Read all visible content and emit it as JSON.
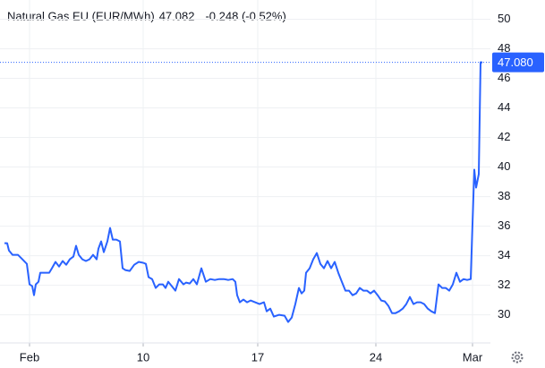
{
  "chart_data": {
    "type": "line",
    "title": "Natural Gas EU (EUR/MWh)",
    "price": "47.082",
    "change": "-0.248 (-0.52%)",
    "price_color": "#2962ff",
    "change_color": "#f23645",
    "color": "#2962ff",
    "last_price": {
      "value": 47.08,
      "label": "47.080"
    },
    "x": [
      5,
      8,
      10,
      14,
      20,
      25,
      30,
      33,
      36,
      38,
      40,
      43,
      45,
      50,
      55,
      58,
      62,
      66,
      70,
      74,
      78,
      82,
      85,
      88,
      92,
      96,
      100,
      104,
      108,
      110,
      113,
      116,
      120,
      123,
      126,
      130,
      134,
      137,
      140,
      145,
      150,
      155,
      160,
      163,
      166,
      170,
      174,
      178,
      182,
      185,
      188,
      192,
      196,
      200,
      205,
      208,
      212,
      216,
      220,
      225,
      230,
      235,
      240,
      245,
      250,
      255,
      260,
      263,
      265,
      268,
      272,
      276,
      280,
      285,
      290,
      295,
      298,
      302,
      306,
      312,
      318,
      322,
      326,
      330,
      334,
      337,
      340,
      342,
      346,
      350,
      354,
      358,
      362,
      366,
      370,
      374,
      378,
      382,
      386,
      390,
      394,
      398,
      402,
      406,
      410,
      414,
      418,
      422,
      426,
      430,
      434,
      438,
      442,
      446,
      450,
      454,
      458,
      462,
      466,
      470,
      474,
      478,
      482,
      486,
      490,
      494,
      498,
      502,
      506,
      510,
      514,
      518,
      522,
      526,
      528,
      530,
      532,
      535,
      537,
      539
    ],
    "values": [
      34.85,
      34.85,
      34.36,
      34.06,
      34.06,
      33.76,
      33.45,
      32.06,
      31.94,
      31.33,
      32.06,
      32.24,
      32.85,
      32.85,
      32.85,
      33.15,
      33.58,
      33.27,
      33.64,
      33.39,
      33.76,
      33.94,
      34.67,
      34.06,
      33.76,
      33.64,
      33.76,
      34.06,
      33.76,
      34.48,
      34.97,
      34.24,
      34.97,
      35.88,
      35.09,
      35.09,
      34.97,
      33.15,
      33.03,
      32.97,
      33.39,
      33.58,
      33.52,
      33.45,
      32.55,
      32.42,
      31.82,
      32.06,
      32.06,
      31.82,
      32.24,
      31.94,
      31.64,
      32.42,
      32.06,
      32.18,
      32.12,
      32.42,
      32.06,
      33.15,
      32.24,
      32.42,
      32.36,
      32.42,
      32.42,
      32.36,
      32.42,
      32.24,
      31.33,
      30.85,
      31.03,
      30.85,
      30.97,
      30.85,
      30.73,
      30.85,
      30.24,
      30.42,
      29.88,
      30.0,
      29.94,
      29.52,
      29.82,
      30.73,
      31.82,
      31.45,
      31.64,
      32.85,
      33.15,
      33.76,
      34.18,
      33.45,
      33.15,
      33.64,
      33.15,
      33.58,
      32.85,
      32.24,
      31.64,
      31.64,
      31.33,
      31.45,
      31.82,
      31.64,
      31.64,
      31.45,
      31.64,
      31.33,
      30.97,
      30.91,
      30.61,
      30.12,
      30.12,
      30.24,
      30.42,
      30.73,
      31.21,
      30.73,
      30.85,
      30.85,
      30.73,
      30.42,
      30.24,
      30.12,
      32.06,
      31.82,
      31.82,
      31.64,
      32.06,
      32.85,
      32.24,
      32.42,
      32.36,
      32.42,
      36.18,
      39.82,
      38.61,
      39.52,
      47.09,
      47.08
    ],
    "xlim": [
      0,
      548
    ],
    "xticks": [
      {
        "value": 33,
        "label": "Feb"
      },
      {
        "value": 160,
        "label": "10"
      },
      {
        "value": 288,
        "label": "17"
      },
      {
        "value": 420,
        "label": "24"
      },
      {
        "value": 528,
        "label": "Mar"
      }
    ],
    "ylim": [
      28.1,
      51.3
    ],
    "yticks": [
      30,
      32,
      34,
      36,
      38,
      40,
      42,
      44,
      46,
      48,
      50
    ],
    "grid": true
  }
}
